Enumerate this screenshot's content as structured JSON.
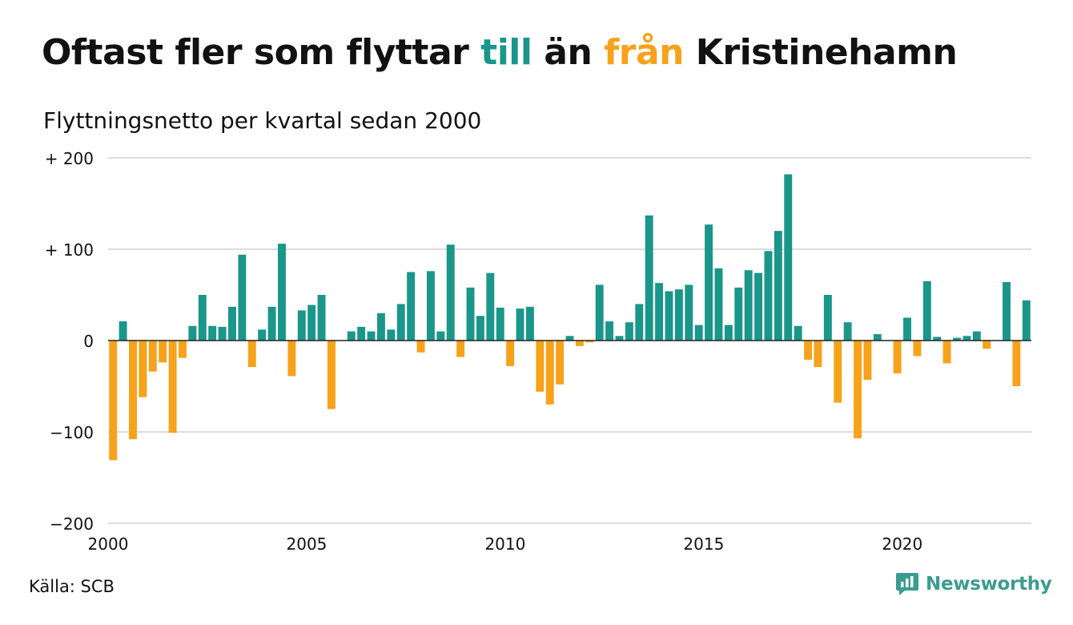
{
  "header": {
    "title_part1": "Oftast fler som flyttar ",
    "title_till": "till",
    "title_part2": " än ",
    "title_fran": "från",
    "title_part3": " Kristinehamn",
    "subtitle": "Flyttningsnetto per kvartal sedan 2000"
  },
  "footer": {
    "source": "Källa: SCB",
    "brand": "Newsworthy"
  },
  "colors": {
    "positive": "#1a968a",
    "negative": "#f7a21b",
    "grid": "#dddddd",
    "zero_line": "#222222",
    "brand": "#3b9c91",
    "text": "#111111"
  },
  "chart_data": {
    "type": "bar",
    "title": "Oftast fler som flyttar till än från Kristinehamn",
    "subtitle": "Flyttningsnetto per kvartal sedan 2000",
    "xlabel": "",
    "ylabel": "",
    "ylim": [
      -200,
      200
    ],
    "xlim": [
      2000,
      2023.25
    ],
    "y_ticks": [
      {
        "value": 200,
        "label": "+ 200"
      },
      {
        "value": 100,
        "label": "+ 100"
      },
      {
        "value": 0,
        "label": "0"
      },
      {
        "value": -100,
        "label": "−100"
      },
      {
        "value": -200,
        "label": "−200"
      }
    ],
    "x_ticks": [
      {
        "value": 2000,
        "label": "2000"
      },
      {
        "value": 2005,
        "label": "2005"
      },
      {
        "value": 2010,
        "label": "2010"
      },
      {
        "value": 2015,
        "label": "2015"
      },
      {
        "value": 2020,
        "label": "2020"
      }
    ],
    "grid": true,
    "start_year": 2000,
    "periods_per_year": 4,
    "values": [
      -131,
      21,
      -108,
      -62,
      -34,
      -24,
      -101,
      -19,
      16,
      50,
      16,
      15,
      37,
      94,
      -29,
      12,
      37,
      106,
      -39,
      33,
      39,
      50,
      -75,
      0,
      10,
      15,
      10,
      30,
      12,
      40,
      75,
      -13,
      76,
      10,
      105,
      -18,
      58,
      27,
      74,
      36,
      -28,
      35,
      37,
      -56,
      -70,
      -48,
      5,
      -6,
      -2,
      61,
      21,
      5,
      20,
      40,
      137,
      63,
      54,
      56,
      61,
      17,
      127,
      79,
      17,
      58,
      77,
      74,
      98,
      120,
      182,
      16,
      -21,
      -29,
      50,
      -68,
      20,
      -107,
      -43,
      7,
      0,
      -36,
      25,
      -17,
      65,
      4,
      -25,
      3,
      5,
      10,
      -9,
      0,
      64,
      -50,
      44
    ]
  }
}
